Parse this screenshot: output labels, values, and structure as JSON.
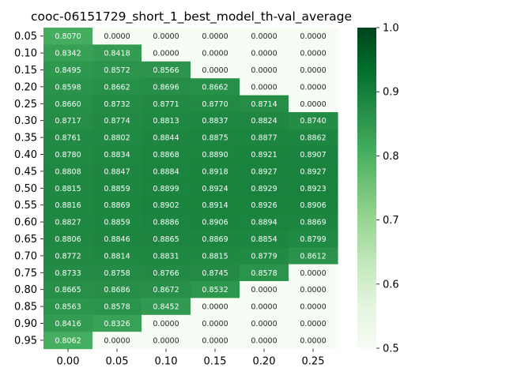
{
  "chart_data": {
    "type": "heatmap",
    "title": "cooc-06151729_short_1_best_model_th-val_average",
    "x": [
      "0.00",
      "0.05",
      "0.10",
      "0.15",
      "0.20",
      "0.25"
    ],
    "y": [
      "0.05",
      "0.10",
      "0.15",
      "0.20",
      "0.25",
      "0.30",
      "0.35",
      "0.40",
      "0.45",
      "0.50",
      "0.55",
      "0.60",
      "0.65",
      "0.70",
      "0.75",
      "0.80",
      "0.85",
      "0.90",
      "0.95"
    ],
    "values": [
      [
        0.807,
        0.0,
        0.0,
        0.0,
        0.0,
        0.0
      ],
      [
        0.8342,
        0.8418,
        0.0,
        0.0,
        0.0,
        0.0
      ],
      [
        0.8495,
        0.8572,
        0.8566,
        0.0,
        0.0,
        0.0
      ],
      [
        0.8598,
        0.8662,
        0.8696,
        0.8662,
        0.0,
        0.0
      ],
      [
        0.866,
        0.8732,
        0.8771,
        0.877,
        0.8714,
        0.0
      ],
      [
        0.8717,
        0.8774,
        0.8813,
        0.8837,
        0.8824,
        0.874
      ],
      [
        0.8761,
        0.8802,
        0.8844,
        0.8875,
        0.8877,
        0.8862
      ],
      [
        0.878,
        0.8834,
        0.8868,
        0.889,
        0.8921,
        0.8907
      ],
      [
        0.8808,
        0.8847,
        0.8884,
        0.8918,
        0.8927,
        0.8927
      ],
      [
        0.8815,
        0.8859,
        0.8899,
        0.8924,
        0.8929,
        0.8923
      ],
      [
        0.8816,
        0.8869,
        0.8902,
        0.8914,
        0.8926,
        0.8906
      ],
      [
        0.8827,
        0.8859,
        0.8886,
        0.8906,
        0.8894,
        0.8869
      ],
      [
        0.8806,
        0.8846,
        0.8865,
        0.8869,
        0.8854,
        0.8799
      ],
      [
        0.8772,
        0.8814,
        0.8831,
        0.8815,
        0.8779,
        0.8612
      ],
      [
        0.8733,
        0.8758,
        0.8766,
        0.8745,
        0.8578,
        0.0
      ],
      [
        0.8665,
        0.8686,
        0.8672,
        0.8532,
        0.0,
        0.0
      ],
      [
        0.8563,
        0.8578,
        0.8452,
        0.0,
        0.0,
        0.0
      ],
      [
        0.8416,
        0.8326,
        0.0,
        0.0,
        0.0,
        0.0
      ],
      [
        0.8062,
        0.0,
        0.0,
        0.0,
        0.0,
        0.0
      ]
    ],
    "value_format_decimals": 4,
    "colorbar": {
      "range": [
        0.5,
        1.0
      ],
      "ticks": [
        "0.5",
        "0.6",
        "0.7",
        "0.8",
        "0.9",
        "1.0"
      ],
      "colormap": "Greens"
    },
    "grid": false
  }
}
